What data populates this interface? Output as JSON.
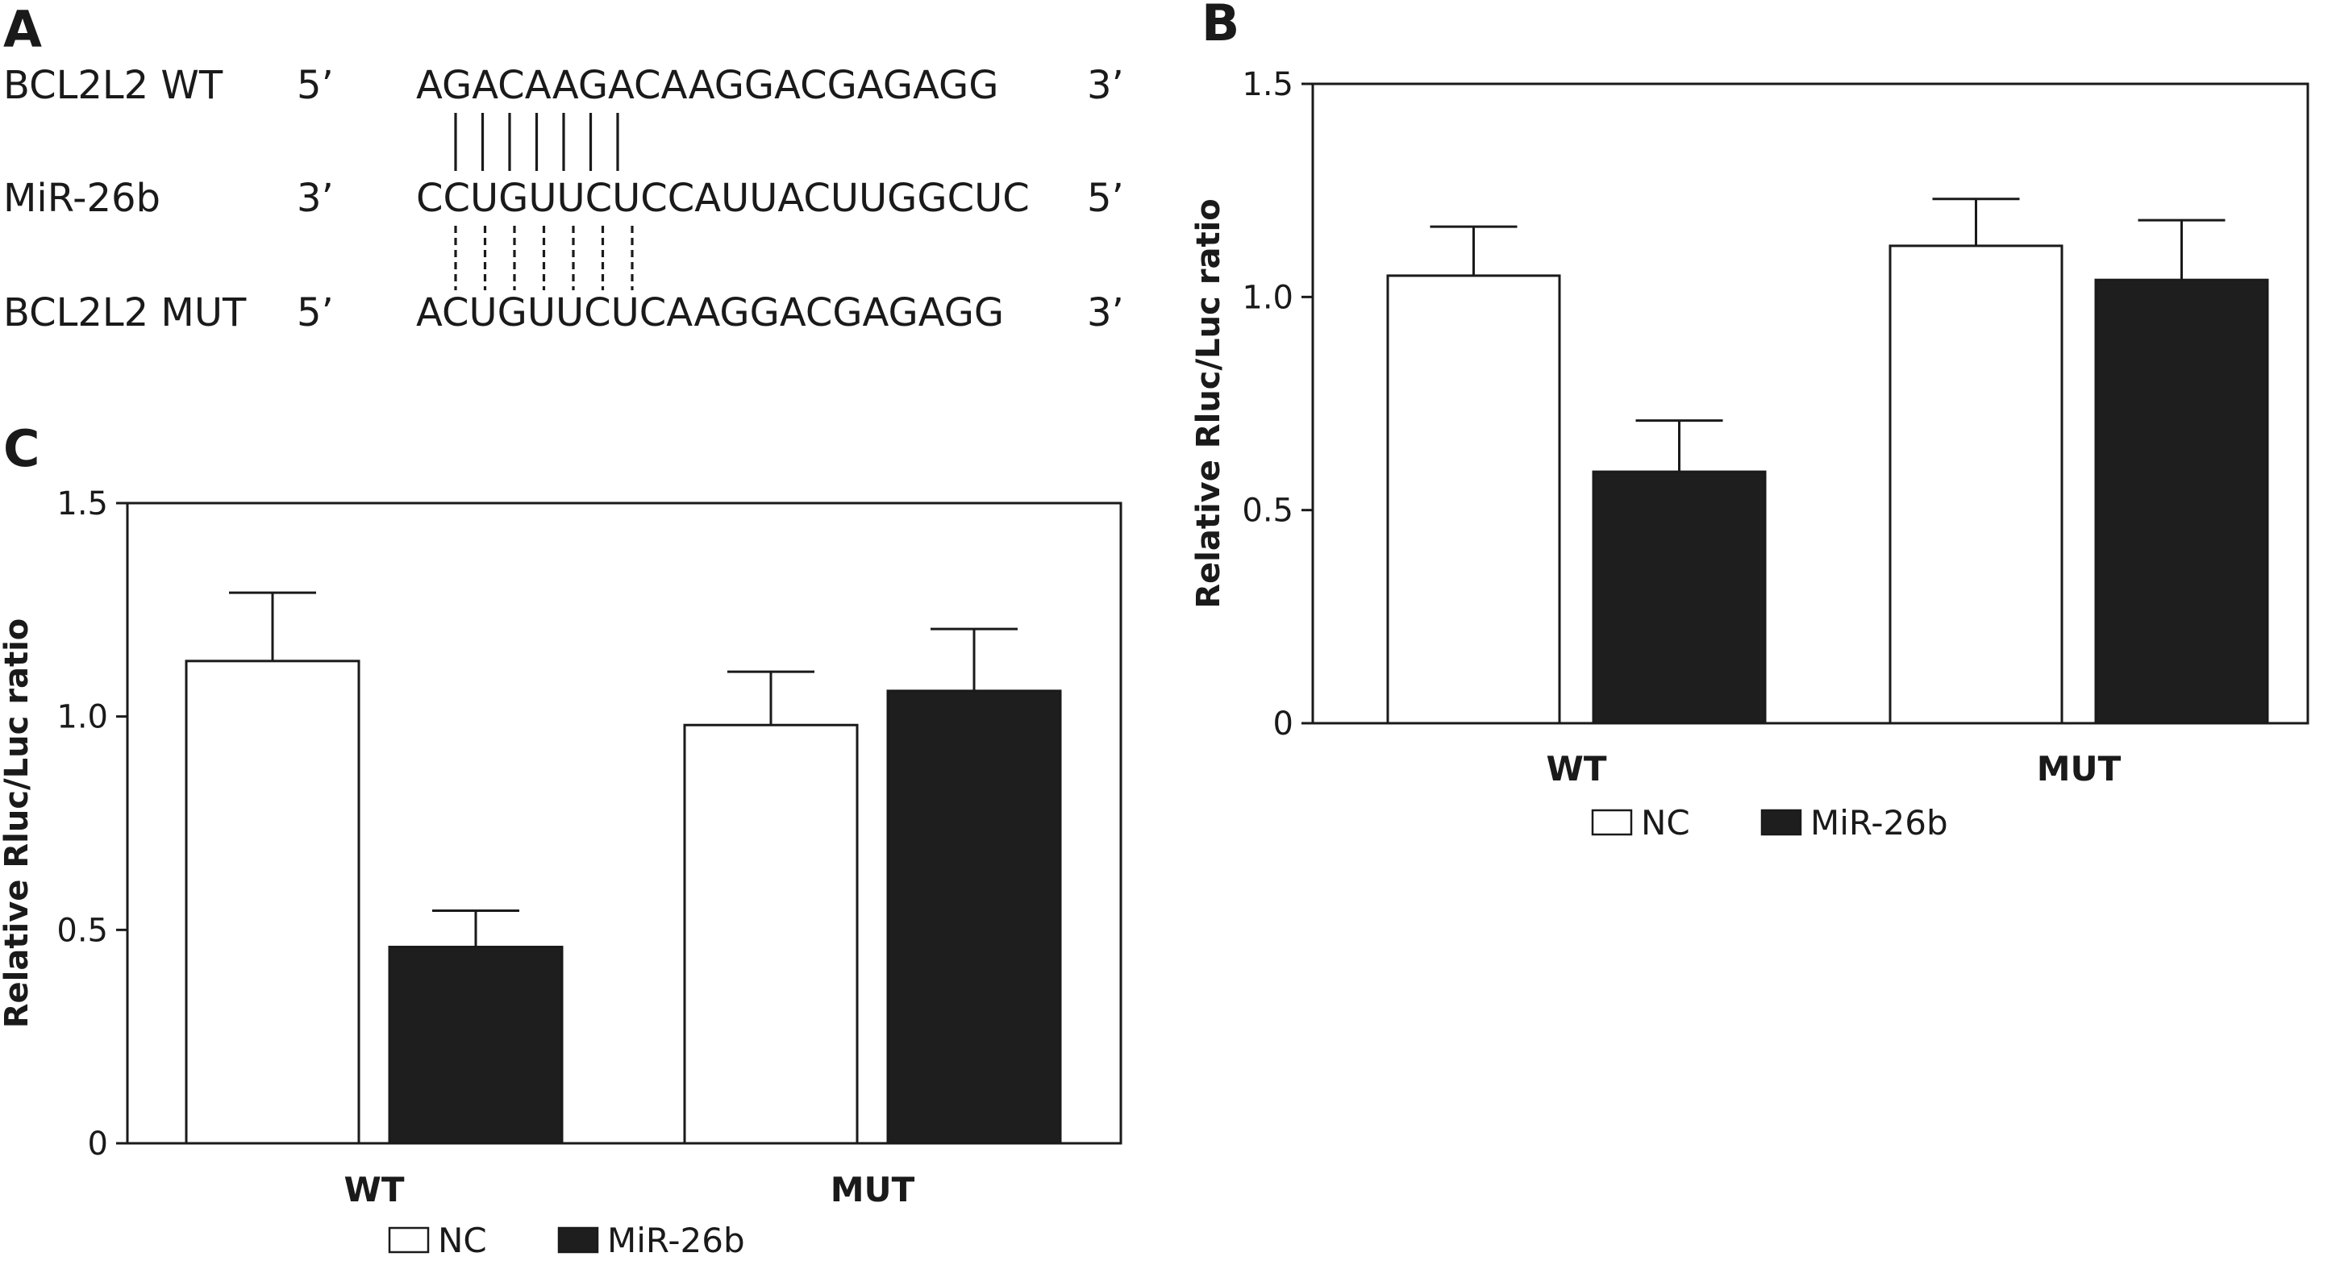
{
  "panel_a": {
    "letter": "A",
    "rows": [
      {
        "name": "BCL2L2 WT",
        "left_end": "5’",
        "sequence": "AGACAAGACAAGGACGAGAGG",
        "right_end": "3’"
      },
      {
        "name": "MiR-26b",
        "left_end": "3’",
        "sequence": "CCUGUUCUCCAUUACUUGGCUC",
        "right_end": "5’"
      },
      {
        "name": "BCL2L2 MUT",
        "left_end": "5’",
        "sequence": "ACUGUUCUCAAGGACGAGAGG",
        "right_end": "3’"
      }
    ],
    "pairing": {
      "wt_pairs": 7,
      "mut_pairs": 7
    }
  },
  "chart_data": [
    {
      "panel": "B",
      "type": "bar",
      "categories": [
        "WT",
        "MUT"
      ],
      "series": [
        {
          "name": "NC",
          "values": [
            1.05,
            1.12
          ],
          "errors": [
            0.115,
            0.11
          ],
          "color": "#ffffff"
        },
        {
          "name": "MiR-26b",
          "values": [
            0.59,
            1.04
          ],
          "errors": [
            0.12,
            0.14
          ],
          "color": "#1e1e1e"
        }
      ],
      "ylabel": "Relative Rluc/Luc ratio",
      "ylim": [
        0,
        1.5
      ],
      "yticks": [
        "0",
        "0.5",
        "1.0",
        "1.5"
      ],
      "grid": false,
      "legend": "bottom"
    },
    {
      "panel": "C",
      "type": "bar",
      "categories": [
        "WT",
        "MUT"
      ],
      "series": [
        {
          "name": "NC",
          "values": [
            1.13,
            0.98
          ],
          "errors": [
            0.16,
            0.125
          ],
          "color": "#ffffff"
        },
        {
          "name": "MiR-26b",
          "values": [
            0.46,
            1.06
          ],
          "errors": [
            0.085,
            0.145
          ],
          "color": "#1e1e1e"
        }
      ],
      "ylabel": "Relative Rluc/Luc ratio",
      "ylim": [
        0,
        1.5
      ],
      "yticks": [
        "0",
        "0.5",
        "1.0",
        "1.5"
      ],
      "grid": false,
      "legend": "bottom"
    }
  ]
}
